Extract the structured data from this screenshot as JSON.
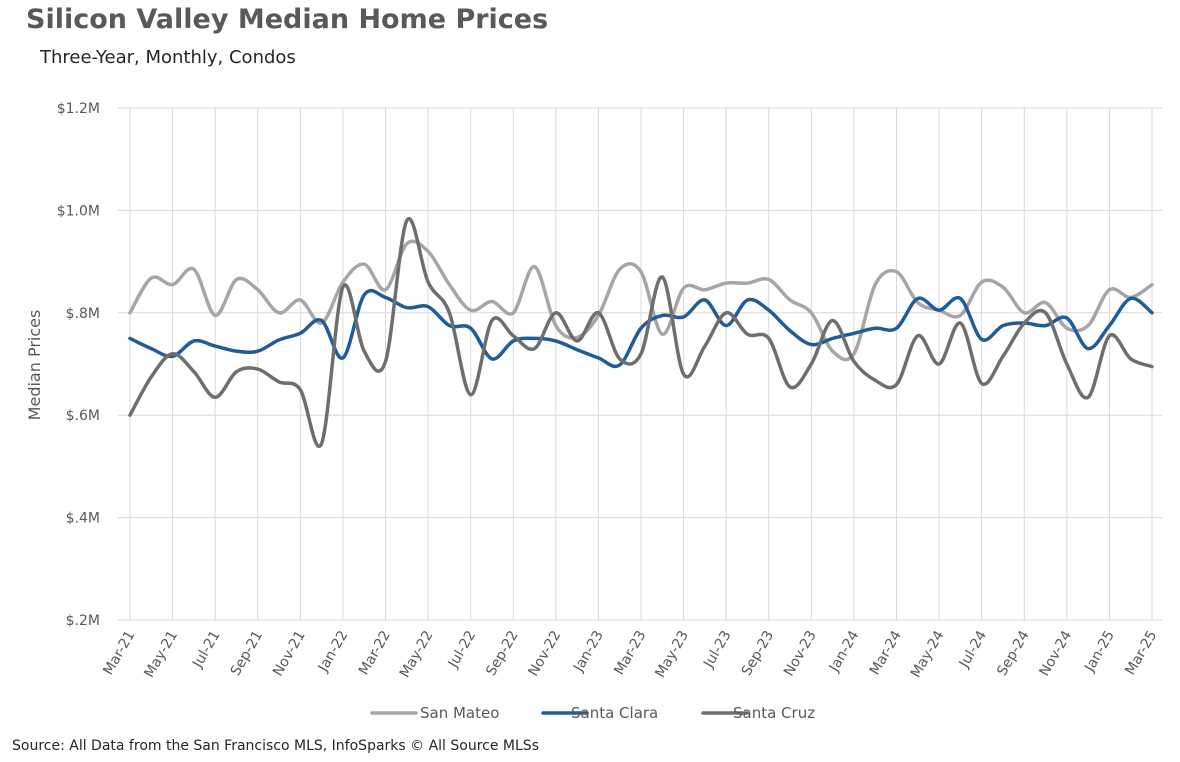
{
  "chart_data": {
    "type": "line",
    "title": "Silicon Valley Median Home Prices",
    "subtitle": "Three-Year, Monthly, Condos",
    "ylabel": "Median Prices",
    "xlabel": "",
    "source": "Source: All Data from the San Francisco MLS, InfoSparks © All Source MLSs",
    "ylim": [
      200000,
      1200000
    ],
    "yticks": [
      200000,
      400000,
      600000,
      800000,
      1000000,
      1200000
    ],
    "ytick_labels": [
      "$.2M",
      "$.4M",
      "$.6M",
      "$.8M",
      "$1.0M",
      "$1.2M"
    ],
    "grid": true,
    "legend": "bottom",
    "x": [
      "Mar-21",
      "Apr-21",
      "May-21",
      "Jun-21",
      "Jul-21",
      "Aug-21",
      "Sep-21",
      "Oct-21",
      "Nov-21",
      "Dec-21",
      "Jan-22",
      "Feb-22",
      "Mar-22",
      "Apr-22",
      "May-22",
      "Jun-22",
      "Jul-22",
      "Aug-22",
      "Sep-22",
      "Oct-22",
      "Nov-22",
      "Dec-22",
      "Jan-23",
      "Feb-23",
      "Mar-23",
      "Apr-23",
      "May-23",
      "Jun-23",
      "Jul-23",
      "Aug-23",
      "Sep-23",
      "Oct-23",
      "Nov-23",
      "Dec-23",
      "Jan-24",
      "Feb-24",
      "Mar-24",
      "Apr-24",
      "May-24",
      "Jun-24",
      "Jul-24",
      "Aug-24",
      "Sep-24",
      "Oct-24",
      "Nov-24",
      "Dec-24",
      "Jan-25",
      "Feb-25",
      "Mar-25"
    ],
    "x_tick_labels": [
      "Mar-21",
      "May-21",
      "Jul-21",
      "Sep-21",
      "Nov-21",
      "Jan-22",
      "Mar-22",
      "May-22",
      "Jul-22",
      "Sep-22",
      "Nov-22",
      "Jan-23",
      "Mar-23",
      "May-23",
      "Jul-23",
      "Sep-23",
      "Nov-23",
      "Jan-24",
      "Mar-24",
      "May-24",
      "Jul-24",
      "Sep-24",
      "Nov-24",
      "Jan-25",
      "Mar-25"
    ],
    "series": [
      {
        "name": "San Mateo",
        "color": "#a6a6a6",
        "values": [
          800000,
          868000,
          855000,
          885000,
          795000,
          865000,
          845000,
          800000,
          825000,
          780000,
          860000,
          895000,
          845000,
          935000,
          920000,
          855000,
          805000,
          822000,
          800000,
          890000,
          775000,
          752000,
          795000,
          885000,
          880000,
          758000,
          848000,
          845000,
          858000,
          858000,
          865000,
          825000,
          800000,
          725000,
          720000,
          855000,
          880000,
          820000,
          805000,
          795000,
          860000,
          850000,
          800000,
          820000,
          770000,
          775000,
          845000,
          830000,
          855000
        ]
      },
      {
        "name": "Santa Clara",
        "color": "#1f5c99",
        "values": [
          750000,
          730000,
          715000,
          745000,
          735000,
          725000,
          725000,
          747000,
          760000,
          785000,
          712000,
          835000,
          830000,
          810000,
          812000,
          775000,
          770000,
          710000,
          745000,
          750000,
          745000,
          728000,
          712000,
          698000,
          770000,
          795000,
          792000,
          825000,
          775000,
          825000,
          805000,
          765000,
          738000,
          750000,
          760000,
          770000,
          770000,
          828000,
          805000,
          828000,
          748000,
          775000,
          780000,
          775000,
          790000,
          730000,
          775000,
          828000,
          800000
        ]
      },
      {
        "name": "Santa Cruz",
        "color": "#6e6e6e",
        "values": [
          600000,
          675000,
          720000,
          685000,
          635000,
          685000,
          690000,
          665000,
          650000,
          545000,
          850000,
          725000,
          705000,
          980000,
          860000,
          800000,
          640000,
          785000,
          755000,
          730000,
          800000,
          745000,
          800000,
          710000,
          720000,
          870000,
          680000,
          735000,
          800000,
          758000,
          750000,
          655000,
          700000,
          785000,
          705000,
          668000,
          660000,
          755000,
          700000,
          780000,
          662000,
          715000,
          780000,
          800000,
          700000,
          635000,
          755000,
          710000,
          695000
        ]
      }
    ]
  }
}
